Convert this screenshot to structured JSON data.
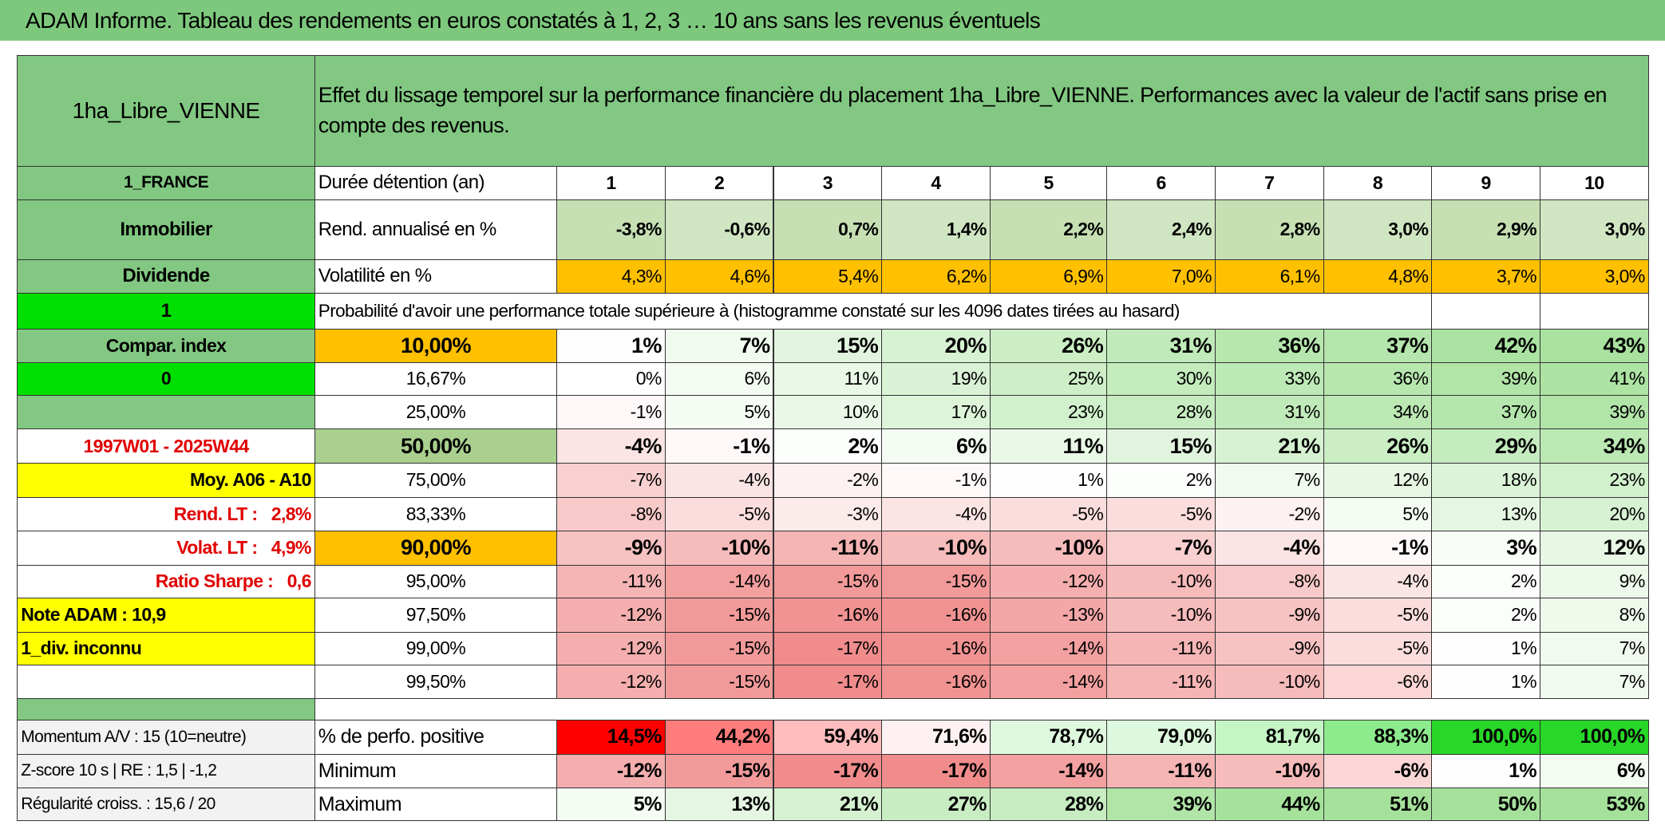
{
  "title": "ADAM Informe. Tableau des rendements en euros constatés à 1, 2, 3 … 10 ans sans les revenus éventuels",
  "header": {
    "name": "1ha_Libre_VIENNE",
    "description": "Effet du lissage temporel sur la performance financière du placement 1ha_Libre_VIENNE. Performances avec la valeur de l'actif sans prise en compte des revenus."
  },
  "stat_rows": [
    {
      "left": "1_FRANCE",
      "label": "Durée détention (an)",
      "values": [
        "1",
        "2",
        "3",
        "4",
        "5",
        "6",
        "7",
        "8",
        "9",
        "10"
      ]
    },
    {
      "left": "Immobilier",
      "label": "Rend. annualisé en %",
      "values": [
        "-3,8%",
        "-0,6%",
        "0,7%",
        "1,4%",
        "2,2%",
        "2,4%",
        "2,8%",
        "3,0%",
        "2,9%",
        "3,0%"
      ]
    },
    {
      "left": "Dividende",
      "label": "Volatilité en %",
      "values": [
        "4,3%",
        "4,6%",
        "5,4%",
        "6,2%",
        "6,9%",
        "7,0%",
        "6,1%",
        "4,8%",
        "3,7%",
        "3,0%"
      ]
    }
  ],
  "probability": {
    "left": "1",
    "text": "Probabilité d'avoir une performance totale supérieure à (histogramme constaté sur les 4096 dates tirées au hasard)"
  },
  "percentile_rows": [
    {
      "left": "Compar. index",
      "label": "10,00%",
      "values": [
        "1%",
        "7%",
        "15%",
        "20%",
        "26%",
        "31%",
        "36%",
        "37%",
        "42%",
        "43%"
      ]
    },
    {
      "left": "0",
      "label": "16,67%",
      "values": [
        "0%",
        "6%",
        "11%",
        "19%",
        "25%",
        "30%",
        "33%",
        "36%",
        "39%",
        "41%"
      ]
    },
    {
      "label": "25,00%",
      "values": [
        "-1%",
        "5%",
        "10%",
        "17%",
        "23%",
        "28%",
        "31%",
        "34%",
        "37%",
        "39%"
      ]
    },
    {
      "left": "1997W01 - 2025W44",
      "label": "50,00%",
      "values": [
        "-4%",
        "-1%",
        "2%",
        "6%",
        "11%",
        "15%",
        "21%",
        "26%",
        "29%",
        "34%"
      ]
    },
    {
      "left": "Moy. A06 - A10",
      "label": "75,00%",
      "values": [
        "-7%",
        "-4%",
        "-2%",
        "-1%",
        "1%",
        "2%",
        "7%",
        "12%",
        "18%",
        "23%"
      ]
    },
    {
      "left": "Rend. LT :   2,8%",
      "label": "83,33%",
      "values": [
        "-8%",
        "-5%",
        "-3%",
        "-4%",
        "-5%",
        "-5%",
        "-2%",
        "5%",
        "13%",
        "20%"
      ]
    },
    {
      "left": "Volat. LT :   4,9%",
      "label": "90,00%",
      "values": [
        "-9%",
        "-10%",
        "-11%",
        "-10%",
        "-10%",
        "-7%",
        "-4%",
        "-1%",
        "3%",
        "12%"
      ]
    },
    {
      "left": "Ratio Sharpe :   0,6",
      "label": "95,00%",
      "values": [
        "-11%",
        "-14%",
        "-15%",
        "-15%",
        "-12%",
        "-10%",
        "-8%",
        "-4%",
        "2%",
        "9%"
      ]
    },
    {
      "left": "Note ADAM : 10,9",
      "label": "97,50%",
      "values": [
        "-12%",
        "-15%",
        "-16%",
        "-16%",
        "-13%",
        "-10%",
        "-9%",
        "-5%",
        "2%",
        "8%"
      ]
    },
    {
      "left": "1_div. inconnu",
      "label": "99,00%",
      "values": [
        "-12%",
        "-15%",
        "-17%",
        "-16%",
        "-14%",
        "-11%",
        "-9%",
        "-5%",
        "1%",
        "7%"
      ]
    },
    {
      "label": "99,50%",
      "values": [
        "-12%",
        "-15%",
        "-17%",
        "-16%",
        "-14%",
        "-11%",
        "-10%",
        "-6%",
        "1%",
        "7%"
      ]
    }
  ],
  "bottom_rows": [
    {
      "left": "Momentum A/V : 15 (10=neutre)",
      "label": "% de perfo. positive",
      "values": [
        "14,5%",
        "44,2%",
        "59,4%",
        "71,6%",
        "78,7%",
        "79,0%",
        "81,7%",
        "88,3%",
        "100,0%",
        "100,0%"
      ]
    },
    {
      "left": "Z-score 10 s | RE : 1,5 | -1,2",
      "label": "Minimum",
      "values": [
        "-12%",
        "-15%",
        "-17%",
        "-17%",
        "-14%",
        "-11%",
        "-10%",
        "-6%",
        "1%",
        "6%"
      ]
    },
    {
      "left": "Régularité croiss. : 15,6 / 20",
      "label": "Maximum",
      "values": [
        "5%",
        "13%",
        "21%",
        "27%",
        "28%",
        "39%",
        "44%",
        "51%",
        "50%",
        "53%"
      ]
    }
  ]
}
